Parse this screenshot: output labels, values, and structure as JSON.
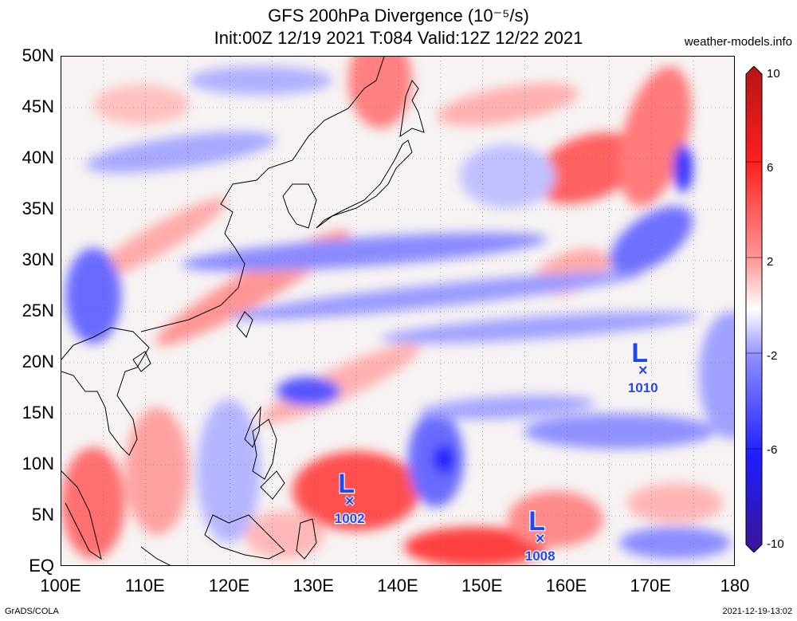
{
  "header": {
    "title": "GFS 200hPa Divergence (10⁻⁵/s)",
    "subtitle": "Init:00Z 12/19 2021 T:084 Valid:12Z 12/22 2021",
    "source": "weather-models.info"
  },
  "axes": {
    "lat_labels": [
      "50N",
      "45N",
      "40N",
      "35N",
      "30N",
      "25N",
      "20N",
      "15N",
      "10N",
      "5N",
      "EQ"
    ],
    "lon_labels": [
      "100E",
      "110E",
      "120E",
      "130E",
      "140E",
      "150E",
      "160E",
      "170E",
      "180"
    ]
  },
  "colorbar": {
    "labels": [
      "10",
      "6",
      "2",
      "-2",
      "-6",
      "-10"
    ],
    "colors": [
      "#b41414",
      "#ff2020",
      "#ff9a9a",
      "#ffffff",
      "#8c8cff",
      "#1e1eff",
      "#3c1496"
    ]
  },
  "lows": [
    {
      "letter": "L",
      "pressure": "1002",
      "lon": 134.2,
      "lat": 6.5
    },
    {
      "letter": "L",
      "pressure": "1008",
      "lon": 156.8,
      "lat": 2.8
    },
    {
      "letter": "L",
      "pressure": "1010",
      "lon": 169.0,
      "lat": 19.3
    }
  ],
  "footer": {
    "left": "GrADS/COLA",
    "right": "2021-12-19-13:02"
  }
}
